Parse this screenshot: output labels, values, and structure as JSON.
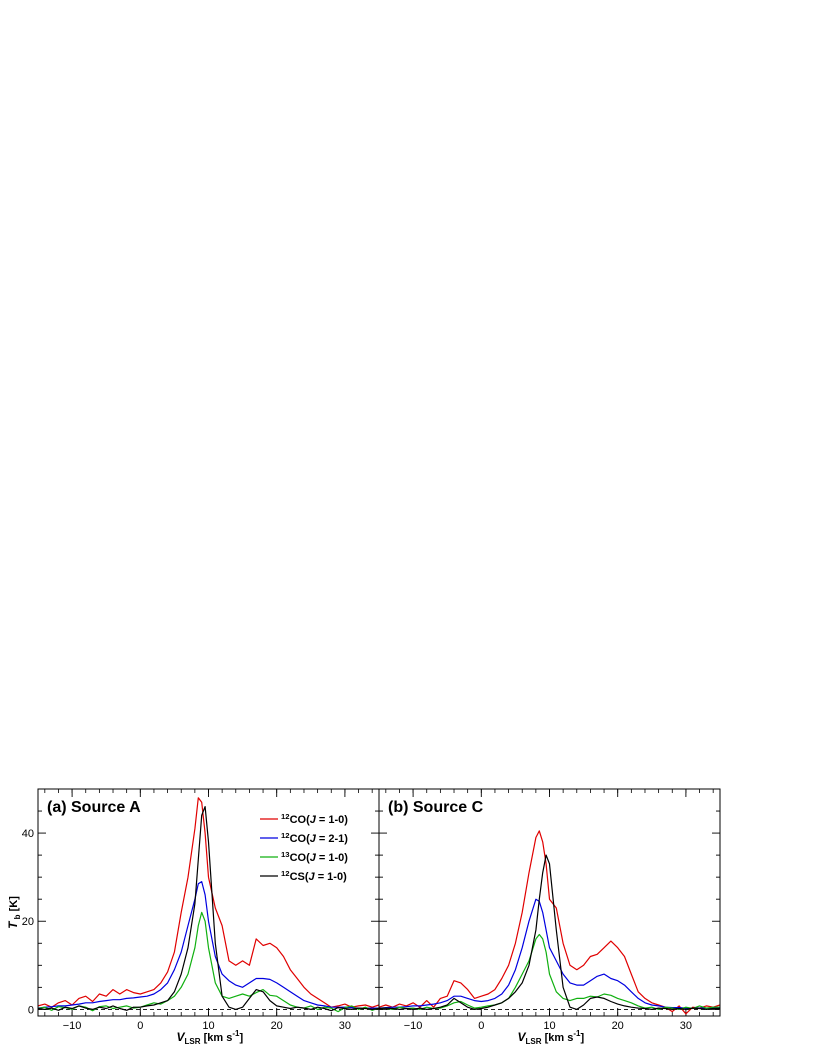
{
  "chart_data": [
    {
      "type": "line",
      "title": "(a) Source A",
      "xlabel": "V_LSR [km s^-1]",
      "ylabel": "T_b [K]",
      "xlim": [
        -15,
        35
      ],
      "ylim": [
        -1.5,
        50
      ],
      "x_ticks": [
        -10,
        0,
        10,
        20,
        30
      ],
      "y_ticks": [
        0,
        20,
        40
      ],
      "reference_line": {
        "y": 0,
        "style": "dashed"
      },
      "legend_position": "upper-right",
      "series": [
        {
          "name": "12CO(J = 1-0)",
          "color": "#e00000",
          "x": [
            -15,
            -14,
            -13,
            -12,
            -11,
            -10,
            -9,
            -8,
            -7,
            -6,
            -5,
            -4,
            -3,
            -2,
            -1,
            0,
            1,
            2,
            3,
            4,
            5,
            6,
            7,
            8,
            8.5,
            9,
            9.5,
            10,
            11,
            12,
            13,
            14,
            15,
            16,
            17,
            18,
            19,
            20,
            21,
            22,
            23,
            24,
            25,
            26,
            27,
            28,
            29,
            30,
            31,
            32,
            33,
            34,
            35
          ],
          "y": [
            0.8,
            1.2,
            0.5,
            1.5,
            2.0,
            1.0,
            2.5,
            3.0,
            1.8,
            3.5,
            3.0,
            4.5,
            3.5,
            4.5,
            3.8,
            3.5,
            4.0,
            4.5,
            6.0,
            8.5,
            13,
            22,
            30,
            41,
            48,
            47,
            40,
            30,
            23,
            19,
            11,
            10,
            11,
            10,
            16,
            14.5,
            15,
            14,
            12,
            9,
            7,
            5,
            3.5,
            2.5,
            1.5,
            0.5,
            0.8,
            1.2,
            0.5,
            0.8,
            1.0,
            0.5,
            1.0
          ]
        },
        {
          "name": "12CO(J = 2-1)",
          "color": "#0000e0",
          "x": [
            -15,
            -14,
            -13,
            -12,
            -11,
            -10,
            -9,
            -8,
            -7,
            -6,
            -5,
            -4,
            -3,
            -2,
            -1,
            0,
            1,
            2,
            3,
            4,
            5,
            6,
            7,
            8,
            8.5,
            9,
            9.5,
            10,
            11,
            12,
            13,
            14,
            15,
            16,
            17,
            18,
            19,
            20,
            21,
            22,
            23,
            24,
            25,
            26,
            27,
            28,
            29,
            30,
            31,
            32,
            33,
            34,
            35
          ],
          "y": [
            0.3,
            0.5,
            0.6,
            0.8,
            0.8,
            1.0,
            1.2,
            1.5,
            1.5,
            1.8,
            2.0,
            2.2,
            2.2,
            2.5,
            2.6,
            2.8,
            3.0,
            3.5,
            4.5,
            6,
            9,
            13,
            19,
            25,
            28.5,
            29,
            26,
            20,
            12,
            8,
            6.5,
            5.5,
            5.0,
            6,
            7,
            7,
            6.8,
            6,
            5,
            4,
            3,
            2,
            1.5,
            1.0,
            0.8,
            0.5,
            0.5,
            0.5,
            0.4,
            0.3,
            0.3,
            0.3,
            0.3
          ]
        },
        {
          "name": "13CO(J = 1-0)",
          "color": "#10b010",
          "x": [
            -15,
            -14,
            -13,
            -12,
            -11,
            -10,
            -9,
            -8,
            -7,
            -6,
            -5,
            -4,
            -3,
            -2,
            -1,
            0,
            1,
            2,
            3,
            4,
            5,
            6,
            7,
            8,
            8.5,
            9,
            9.5,
            10,
            11,
            12,
            13,
            14,
            15,
            16,
            17,
            18,
            19,
            20,
            21,
            22,
            23,
            24,
            25,
            26,
            27,
            28,
            29,
            30,
            31,
            32,
            33,
            34,
            35
          ],
          "y": [
            0.2,
            0.5,
            -0.2,
            0.6,
            0.4,
            0.0,
            0.8,
            0.5,
            -0.3,
            0.6,
            0.8,
            0.2,
            0.5,
            0.8,
            0.3,
            0.5,
            1.0,
            1.5,
            1.2,
            2.0,
            3.0,
            5.0,
            8,
            14,
            19,
            22,
            20,
            14,
            6,
            3,
            2.5,
            3,
            3.5,
            3,
            3.8,
            4.5,
            3.2,
            3.0,
            2.0,
            1.0,
            0.5,
            0.3,
            0.8,
            0.0,
            0.5,
            0.3,
            -0.5,
            0.4,
            0.8,
            0.0,
            0.5,
            -0.2,
            0.3
          ]
        },
        {
          "name": "12CS(J = 1-0)",
          "color": "#000000",
          "x": [
            -15,
            -14,
            -13,
            -12,
            -11,
            -10,
            -9,
            -8,
            -7,
            -6,
            -5,
            -4,
            -3,
            -2,
            -1,
            0,
            1,
            2,
            3,
            4,
            5,
            6,
            7,
            8,
            8.5,
            9,
            9.5,
            10,
            11,
            12,
            13,
            14,
            15,
            16,
            17,
            18,
            19,
            20,
            21,
            22,
            23,
            24,
            25,
            26,
            27,
            28,
            29,
            30,
            31,
            32,
            33,
            34,
            35
          ],
          "y": [
            0.2,
            0.0,
            0.3,
            -0.2,
            0.5,
            0.2,
            0.8,
            0.3,
            0.0,
            0.5,
            0.2,
            0.8,
            0.2,
            -0.2,
            0.5,
            0.5,
            0.8,
            1.0,
            1.5,
            2.0,
            4,
            8,
            14,
            24,
            34,
            44,
            46,
            38,
            15,
            3,
            0.5,
            0,
            0.5,
            2.5,
            4.5,
            4.0,
            2.0,
            0.8,
            0.5,
            0.2,
            0.5,
            0.3,
            0.0,
            0.5,
            0.2,
            -0.3,
            0.4,
            0.2,
            0.0,
            0.3,
            0.2,
            0.0,
            0.2
          ]
        }
      ]
    },
    {
      "type": "line",
      "title": "(b) Source C",
      "xlabel": "V_LSR [km s^-1]",
      "ylabel": "",
      "xlim": [
        -15,
        35
      ],
      "ylim": [
        -1.5,
        50
      ],
      "x_ticks": [
        -10,
        0,
        10,
        20,
        30
      ],
      "y_ticks": [
        0,
        20,
        40
      ],
      "reference_line": {
        "y": 0,
        "style": "dashed"
      },
      "series": [
        {
          "name": "12CO(J = 1-0)",
          "color": "#e00000",
          "x": [
            -15,
            -14,
            -13,
            -12,
            -11,
            -10,
            -9,
            -8,
            -7,
            -6,
            -5,
            -4,
            -3,
            -2,
            -1,
            0,
            1,
            2,
            3,
            4,
            5,
            6,
            7,
            8,
            8.5,
            9,
            9.5,
            10,
            11,
            12,
            13,
            14,
            15,
            16,
            17,
            18,
            19,
            20,
            21,
            22,
            23,
            24,
            25,
            26,
            27,
            28,
            29,
            30,
            31,
            32,
            33,
            34,
            35
          ],
          "y": [
            0.5,
            1.0,
            0.5,
            1.2,
            0.8,
            1.5,
            0.5,
            2.0,
            0.5,
            2.5,
            3.0,
            6.5,
            6.0,
            4.5,
            2.5,
            3.0,
            3.5,
            4.5,
            7.0,
            10,
            15,
            22,
            31,
            39,
            40.5,
            38,
            33,
            25,
            23,
            15,
            10,
            9,
            10,
            12,
            12.5,
            14,
            15.5,
            14,
            12,
            8,
            4,
            2.5,
            1.5,
            1.0,
            0.5,
            -0.5,
            0.8,
            -1.0,
            0.5,
            0.3,
            0.8,
            0.5,
            1.0
          ]
        },
        {
          "name": "12CO(J = 2-1)",
          "color": "#0000e0",
          "x": [
            -15,
            -14,
            -13,
            -12,
            -11,
            -10,
            -9,
            -8,
            -7,
            -6,
            -5,
            -4,
            -3,
            -2,
            -1,
            0,
            1,
            2,
            3,
            4,
            5,
            6,
            7,
            8,
            8.5,
            9,
            9.5,
            10,
            11,
            12,
            13,
            14,
            15,
            16,
            17,
            18,
            19,
            20,
            21,
            22,
            23,
            24,
            25,
            26,
            27,
            28,
            29,
            30,
            31,
            32,
            33,
            34,
            35
          ],
          "y": [
            0.3,
            0.4,
            0.5,
            0.5,
            0.6,
            0.8,
            0.8,
            1.0,
            1.2,
            1.5,
            2.0,
            3.0,
            3.0,
            2.5,
            2.0,
            1.8,
            2.0,
            2.5,
            3.5,
            5.5,
            9,
            14,
            20,
            25,
            24.5,
            22,
            18,
            14,
            11,
            8,
            6,
            5.5,
            5.5,
            6.5,
            7.5,
            8,
            7,
            6.5,
            5.5,
            4,
            2.5,
            1.5,
            1.0,
            0.8,
            0.5,
            0.4,
            0.4,
            0.3,
            0.3,
            0.3,
            0.3,
            0.3,
            0.3
          ]
        },
        {
          "name": "13CO(J = 1-0)",
          "color": "#10b010",
          "x": [
            -15,
            -14,
            -13,
            -12,
            -11,
            -10,
            -9,
            -8,
            -7,
            -6,
            -5,
            -4,
            -3,
            -2,
            -1,
            0,
            1,
            2,
            3,
            4,
            5,
            6,
            7,
            8,
            8.5,
            9,
            9.5,
            10,
            11,
            12,
            13,
            14,
            15,
            16,
            17,
            18,
            19,
            20,
            21,
            22,
            23,
            24,
            25,
            26,
            27,
            28,
            29,
            30,
            31,
            32,
            33,
            34,
            35
          ],
          "y": [
            0.2,
            0.3,
            0.0,
            0.5,
            0.2,
            0.3,
            0.0,
            0.5,
            0.2,
            0.3,
            0.8,
            1.5,
            1.8,
            1.0,
            0.3,
            0.5,
            0.8,
            1.0,
            1.5,
            2.5,
            5,
            8,
            11,
            16,
            17,
            16,
            13,
            8,
            4,
            2.5,
            2,
            2.5,
            2.5,
            3,
            2.8,
            3.5,
            3.2,
            2.5,
            2.0,
            1.5,
            0.8,
            0.3,
            0.5,
            0.0,
            0.5,
            0.3,
            0.0,
            0.5,
            0.2,
            0.8,
            0.3,
            0.5,
            0.5
          ]
        },
        {
          "name": "12CS(J = 1-0)",
          "color": "#000000",
          "x": [
            -15,
            -14,
            -13,
            -12,
            -11,
            -10,
            -9,
            -8,
            -7,
            -6,
            -5,
            -4,
            -3,
            -2,
            -1,
            0,
            1,
            2,
            3,
            4,
            5,
            6,
            7,
            8,
            8.5,
            9,
            9.5,
            10,
            11,
            12,
            13,
            14,
            15,
            16,
            17,
            18,
            19,
            20,
            21,
            22,
            23,
            24,
            25,
            26,
            27,
            28,
            29,
            30,
            31,
            32,
            33,
            34,
            35
          ],
          "y": [
            0.2,
            0.3,
            0.2,
            0.0,
            0.2,
            0.0,
            0.3,
            0.0,
            0.2,
            0.5,
            1.0,
            2.5,
            1.5,
            0.5,
            0.0,
            0.2,
            0.5,
            1.0,
            1.5,
            2.5,
            4,
            6,
            10,
            18,
            25,
            31,
            35,
            33,
            18,
            5,
            0.5,
            0,
            1.0,
            2.5,
            2.8,
            2.5,
            1.8,
            1.2,
            0.8,
            0.5,
            0.3,
            0.2,
            0.0,
            0.3,
            0.2,
            0.0,
            0.2,
            0.0,
            0.3,
            0.2,
            0.0,
            0.2,
            0.2
          ]
        }
      ]
    }
  ]
}
